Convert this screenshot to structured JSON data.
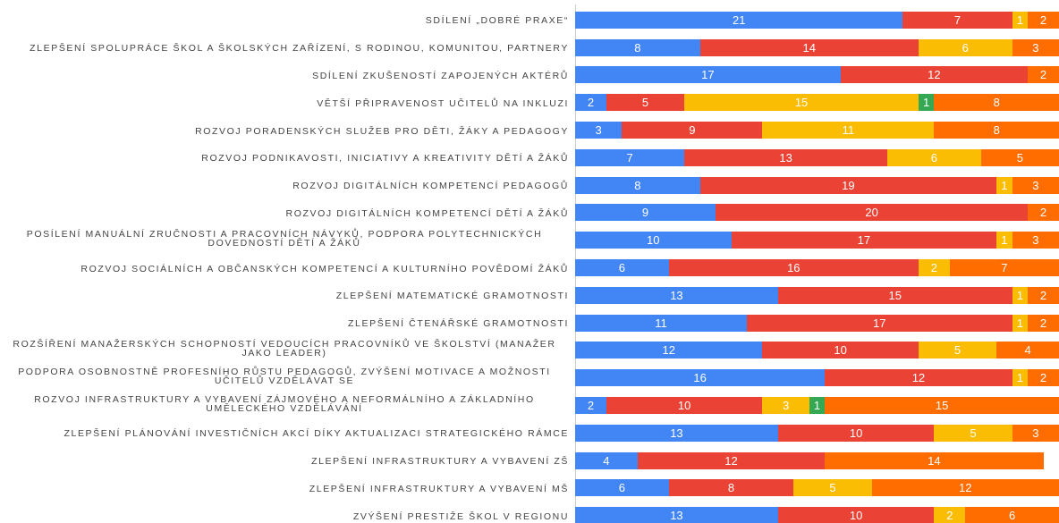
{
  "chart_data": {
    "type": "stacked-bar-horizontal",
    "categories": [
      "SDÍLENÍ „DOBRÉ PRAXE“",
      "ZLEPŠENÍ SPOLUPRÁCE ŠKOL A ŠKOLSKÝCH ZAŘÍZENÍ, S RODINOU, KOMUNITOU, PARTNERY",
      "SDÍLENÍ ZKUŠENOSTÍ ZAPOJENÝCH AKTÉRŮ",
      "VĚTŠÍ PŘIPRAVENOST UČITELŮ NA INKLUZI",
      "ROZVOJ PORADENSKÝCH SLUŽEB PRO DĚTI, ŽÁKY A PEDAGOGY",
      "ROZVOJ PODNIKAVOSTI, INICIATIVY A KREATIVITY DĚTÍ A ŽÁKŮ",
      "ROZVOJ DIGITÁLNÍCH KOMPETENCÍ PEDAGOGŮ",
      "ROZVOJ DIGITÁLNÍCH KOMPETENCÍ DĚTÍ A ŽÁKŮ",
      "POSÍLENÍ MANUÁLNÍ ZRUČNOSTI A PRACOVNÍCH NÁVYKŮ, PODPORA POLYTECHNICKÝCH DOVEDNOSTÍ DĚTÍ A ŽÁKŮ",
      "ROZVOJ SOCIÁLNÍCH A OBČANSKÝCH KOMPETENCÍ A KULTURNÍHO POVĚDOMÍ ŽÁKŮ",
      "ZLEPŠENÍ MATEMATICKÉ GRAMOTNOSTI",
      "ZLEPŠENÍ ČTENÁŘSKÉ GRAMOTNOSTI",
      "ROZŠÍŘENÍ MANAŽERSKÝCH SCHOPNOSTÍ VEDOUCÍCH PRACOVNÍKŮ VE ŠKOLSTVÍ (MANAŽER JAKO LEADER)",
      "PODPORA OSOBNOSTNĚ PROFESNÍHO RŮSTU PEDAGOGŮ, ZVÝŠENÍ MOTIVACE A MOŽNOSTI UČITELŮ VZDĚLÁVAT SE",
      "ROZVOJ INFRASTRUKTURY A VYBAVENÍ ZÁJMOVÉHO A NEFORMÁLNÍHO A ZÁKLADNÍHO UMĚLECKÉHO VZDĚLÁVÁNÍ",
      "ZLEPŠENÍ PLÁNOVÁNÍ INVESTIČNÍCH AKCÍ DÍKY AKTUALIZACI STRATEGICKÉHO RÁMCE",
      "ZLEPŠENÍ INFRASTRUKTURY A VYBAVENÍ ZŠ",
      "ZLEPŠENÍ INFRASTRUKTURY A VYBAVENÍ MŠ",
      "ZVÝŠENÍ PRESTIŽE ŠKOL V REGIONU"
    ],
    "series": [
      {
        "color": "#4285f4",
        "values": [
          21,
          8,
          17,
          2,
          3,
          7,
          8,
          9,
          10,
          6,
          13,
          11,
          12,
          16,
          2,
          13,
          4,
          6,
          13
        ]
      },
      {
        "color": "#ea4335",
        "values": [
          7,
          14,
          12,
          5,
          9,
          13,
          19,
          20,
          17,
          16,
          15,
          17,
          10,
          12,
          10,
          10,
          12,
          8,
          10
        ]
      },
      {
        "color": "#fbbc04",
        "values": [
          1,
          6,
          null,
          15,
          11,
          6,
          1,
          null,
          1,
          2,
          1,
          1,
          5,
          1,
          3,
          5,
          null,
          5,
          2
        ]
      },
      {
        "color": "#34a853",
        "values": [
          null,
          null,
          null,
          1,
          null,
          null,
          null,
          null,
          null,
          null,
          null,
          null,
          null,
          null,
          1,
          null,
          null,
          null,
          null
        ]
      },
      {
        "color": "#ff6d01",
        "values": [
          2,
          3,
          2,
          8,
          8,
          5,
          3,
          2,
          3,
          7,
          2,
          2,
          4,
          2,
          15,
          3,
          14,
          12,
          6
        ]
      }
    ]
  }
}
